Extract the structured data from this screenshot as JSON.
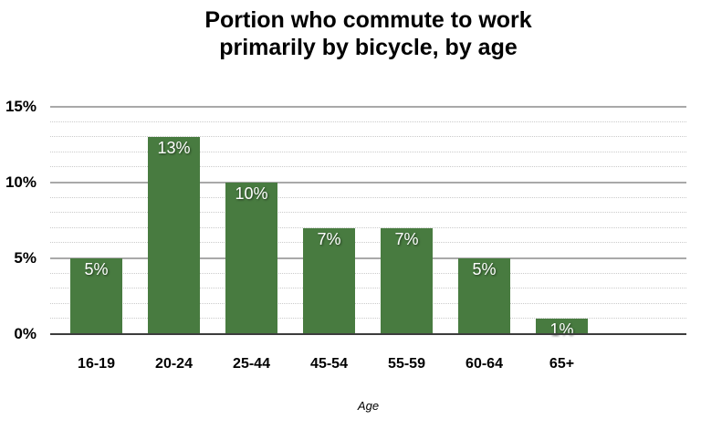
{
  "chart_data": {
    "type": "bar",
    "title_lines": [
      "Portion who commute to work",
      "primarily by bicycle, by age"
    ],
    "categories": [
      "16-19",
      "20-24",
      "25-44",
      "45-54",
      "55-59",
      "60-64",
      "65+"
    ],
    "values": [
      5,
      13,
      10,
      7,
      7,
      5,
      1
    ],
    "bar_labels": [
      "5%",
      "13%",
      "10%",
      "7%",
      "7%",
      "5%",
      "1%"
    ],
    "xlabel": "Age",
    "ylabel": "",
    "ylim": [
      0,
      15
    ],
    "y_ticks": [
      {
        "value": 0,
        "label": "0%"
      },
      {
        "value": 5,
        "label": "5%"
      },
      {
        "value": 10,
        "label": "10%"
      },
      {
        "value": 15,
        "label": "15%"
      }
    ],
    "major_grid_step": 5,
    "minor_grid_step": 1,
    "grid": true,
    "legend": "none",
    "colors": {
      "bar": "#487b40",
      "bar_label": "#ffffff",
      "major_grid": "#a9a9a9",
      "minor_grid": "#cbcbcb",
      "axis_line": "#3d3d3d",
      "text": "#000000",
      "background": "#ffffff"
    }
  }
}
